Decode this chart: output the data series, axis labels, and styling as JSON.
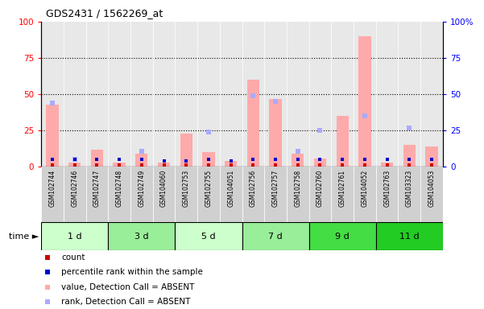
{
  "title": "GDS2431 / 1562269_at",
  "samples": [
    "GSM102744",
    "GSM102746",
    "GSM102747",
    "GSM102748",
    "GSM102749",
    "GSM104060",
    "GSM102753",
    "GSM102755",
    "GSM104051",
    "GSM102756",
    "GSM102757",
    "GSM102758",
    "GSM102760",
    "GSM102761",
    "GSM104052",
    "GSM102763",
    "GSM103323",
    "GSM104053"
  ],
  "time_groups": [
    {
      "label": "1 d",
      "start": 0,
      "end": 3
    },
    {
      "label": "3 d",
      "start": 3,
      "end": 6
    },
    {
      "label": "5 d",
      "start": 6,
      "end": 9
    },
    {
      "label": "7 d",
      "start": 9,
      "end": 12
    },
    {
      "label": "9 d",
      "start": 12,
      "end": 15
    },
    {
      "label": "11 d",
      "start": 15,
      "end": 18
    }
  ],
  "group_colors": [
    "#ccffcc",
    "#99ee99",
    "#ccffcc",
    "#99ee99",
    "#44dd44",
    "#22cc22"
  ],
  "absent_value": [
    43,
    3,
    12,
    3,
    9,
    3,
    23,
    10,
    4,
    60,
    47,
    9,
    6,
    35,
    90,
    3,
    15,
    14
  ],
  "absent_rank": [
    44,
    5,
    0,
    0,
    11,
    0,
    0,
    24,
    0,
    49,
    45,
    11,
    25,
    0,
    35,
    0,
    27,
    0
  ],
  "count_values": [
    0,
    0,
    0,
    0,
    0,
    0,
    0,
    0,
    0,
    0,
    0,
    0,
    0,
    0,
    0,
    0,
    0,
    0
  ],
  "percentile_rank_values": [
    5,
    5,
    5,
    5,
    5,
    4,
    4,
    5,
    4,
    5,
    5,
    5,
    5,
    5,
    5,
    5,
    5,
    5
  ],
  "yticks": [
    0,
    25,
    50,
    75,
    100
  ],
  "count_color": "#cc0000",
  "percentile_color": "#0000cc",
  "absent_value_color": "#ffaaaa",
  "absent_rank_color": "#aaaaff",
  "bg_color": "#e8e8e8",
  "label_bg_color": "#d0d0d0",
  "legend_items": [
    {
      "color": "#cc0000",
      "label": "count"
    },
    {
      "color": "#0000cc",
      "label": "percentile rank within the sample"
    },
    {
      "color": "#ffaaaa",
      "label": "value, Detection Call = ABSENT"
    },
    {
      "color": "#aaaaff",
      "label": "rank, Detection Call = ABSENT"
    }
  ]
}
